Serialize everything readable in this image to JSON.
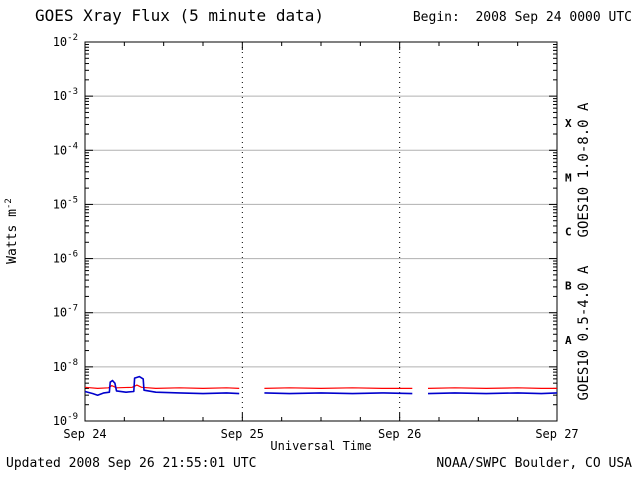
{
  "title": "GOES Xray Flux (5 minute data)",
  "begin_label": "Begin:  2008 Sep 24 0000 UTC",
  "footer": {
    "updated": "Updated 2008 Sep 26 21:55:01 UTC",
    "credit": "NOAA/SWPC Boulder, CO USA"
  },
  "chart_data": {
    "type": "line",
    "title": "GOES Xray Flux (5 minute data)",
    "subtitle": "Begin:  2008 Sep 24 0000 UTC",
    "xlabel": "Universal Time",
    "ylabel": "Watts m-2",
    "ylabel_parts": [
      "Watts m",
      "-2"
    ],
    "x_axis": {
      "tick_labels": [
        "Sep 24",
        "Sep 25",
        "Sep 26",
        "Sep 27"
      ],
      "tick_days": [
        0,
        1,
        2,
        3
      ],
      "range_days": [
        0,
        3
      ],
      "minor_step_days": 0.25
    },
    "y_axis": {
      "scale": "log10",
      "tick_exponents": [
        -2,
        -3,
        -4,
        -5,
        -6,
        -7,
        -8,
        -9
      ],
      "range_exponents": [
        -9,
        -2
      ]
    },
    "grid": {
      "horizontal_exponents": [
        -3,
        -4,
        -5,
        -6,
        -7,
        -8
      ],
      "vertical_days": [
        1,
        2
      ],
      "horizontal_color": "#b0b0b0",
      "vertical_color": "#000000",
      "vertical_style": "dotted"
    },
    "flux_classes": [
      {
        "label": "X",
        "exponent_mid": -3.5
      },
      {
        "label": "M",
        "exponent_mid": -4.5
      },
      {
        "label": "C",
        "exponent_mid": -5.5
      },
      {
        "label": "B",
        "exponent_mid": -6.5
      },
      {
        "label": "A",
        "exponent_mid": -7.5
      }
    ],
    "series": [
      {
        "name": "GOES10 1.0-8.0 A",
        "color": "#ff0000",
        "segments": [
          [
            [
              0.0,
              4.2e-09
            ],
            [
              0.08,
              4e-09
            ],
            [
              0.15,
              4.1e-09
            ],
            [
              0.17,
              4.5e-09
            ],
            [
              0.2,
              4.1e-09
            ],
            [
              0.3,
              4.2e-09
            ],
            [
              0.33,
              4.6e-09
            ],
            [
              0.36,
              4.2e-09
            ],
            [
              0.45,
              4e-09
            ],
            [
              0.6,
              4.1e-09
            ],
            [
              0.75,
              4e-09
            ],
            [
              0.9,
              4.1e-09
            ],
            [
              0.98,
              4e-09
            ]
          ],
          [
            [
              1.14,
              4e-09
            ],
            [
              1.3,
              4.1e-09
            ],
            [
              1.5,
              4e-09
            ],
            [
              1.7,
              4.1e-09
            ],
            [
              1.9,
              4e-09
            ],
            [
              2.08,
              4e-09
            ]
          ],
          [
            [
              2.18,
              4e-09
            ],
            [
              2.35,
              4.1e-09
            ],
            [
              2.55,
              4e-09
            ],
            [
              2.75,
              4.1e-09
            ],
            [
              2.9,
              4e-09
            ],
            [
              3.0,
              4e-09
            ]
          ]
        ]
      },
      {
        "name": "GOES10 0.5-4.0 A",
        "color": "#0000cc",
        "segments": [
          [
            [
              0.0,
              3.5e-09
            ],
            [
              0.05,
              3.2e-09
            ],
            [
              0.08,
              3e-09
            ],
            [
              0.12,
              3.3e-09
            ],
            [
              0.155,
              3.4e-09
            ],
            [
              0.16,
              5.2e-09
            ],
            [
              0.175,
              5.6e-09
            ],
            [
              0.19,
              5e-09
            ],
            [
              0.2,
              3.6e-09
            ],
            [
              0.26,
              3.4e-09
            ],
            [
              0.31,
              3.5e-09
            ],
            [
              0.315,
              6.2e-09
            ],
            [
              0.345,
              6.6e-09
            ],
            [
              0.37,
              6e-09
            ],
            [
              0.375,
              3.7e-09
            ],
            [
              0.45,
              3.4e-09
            ],
            [
              0.6,
              3.3e-09
            ],
            [
              0.75,
              3.2e-09
            ],
            [
              0.9,
              3.3e-09
            ],
            [
              0.98,
              3.2e-09
            ]
          ],
          [
            [
              1.14,
              3.3e-09
            ],
            [
              1.3,
              3.2e-09
            ],
            [
              1.5,
              3.3e-09
            ],
            [
              1.7,
              3.2e-09
            ],
            [
              1.9,
              3.3e-09
            ],
            [
              2.08,
              3.2e-09
            ]
          ],
          [
            [
              2.18,
              3.2e-09
            ],
            [
              2.35,
              3.3e-09
            ],
            [
              2.55,
              3.2e-09
            ],
            [
              2.75,
              3.3e-09
            ],
            [
              2.9,
              3.2e-09
            ],
            [
              3.0,
              3.3e-09
            ]
          ]
        ]
      }
    ]
  }
}
